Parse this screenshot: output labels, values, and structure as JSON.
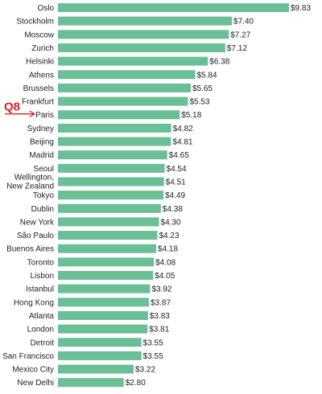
{
  "chart_data": {
    "type": "bar",
    "orientation": "horizontal",
    "title": "",
    "xlabel": "",
    "ylabel": "",
    "categories": [
      "Oslo",
      "Stockholm",
      "Moscow",
      "Zurich",
      "Helsinki",
      "Athens",
      "Brussels",
      "Frankfurt",
      "Paris",
      "Sydney",
      "Beijing",
      "Madrid",
      "Seoul",
      "Wellington,\nNew Zealand",
      "Tokyo",
      "Dublin",
      "New York",
      "São Paulo",
      "Buenos Aires",
      "Toronto",
      "Lisbon",
      "Istanbul",
      "Hong Kong",
      "Atlanta",
      "London",
      "Detroit",
      "San Francisco",
      "Mexico City",
      "New Delhi"
    ],
    "values": [
      9.83,
      7.4,
      7.27,
      7.12,
      6.38,
      5.84,
      5.65,
      5.53,
      5.18,
      4.82,
      4.81,
      4.65,
      4.54,
      4.51,
      4.49,
      4.38,
      4.3,
      4.23,
      4.18,
      4.08,
      4.05,
      3.92,
      3.87,
      3.83,
      3.81,
      3.55,
      3.55,
      3.22,
      2.8
    ],
    "value_labels": [
      "$9.83",
      "$7.40",
      "$7.27",
      "$7.12",
      "$6.38",
      "$5.84",
      "$5.65",
      "$5.53",
      "$5.18",
      "$4.82",
      "$4.81",
      "$4.65",
      "$4.54",
      "$4.51",
      "$4.49",
      "$4.38",
      "$4.30",
      "$4.23",
      "$4.18",
      "$4.08",
      "$4.05",
      "$3.92",
      "$3.87",
      "$3.83",
      "$3.81",
      "$3.55",
      "$3.55",
      "$3.22",
      "$2.80"
    ],
    "xlim": [
      0,
      9.83
    ],
    "grid": false,
    "legend": "none",
    "bar_color": "#6abf97",
    "annotation": {
      "text": "Q8",
      "target_category": "Paris",
      "color": "#e02020"
    }
  }
}
